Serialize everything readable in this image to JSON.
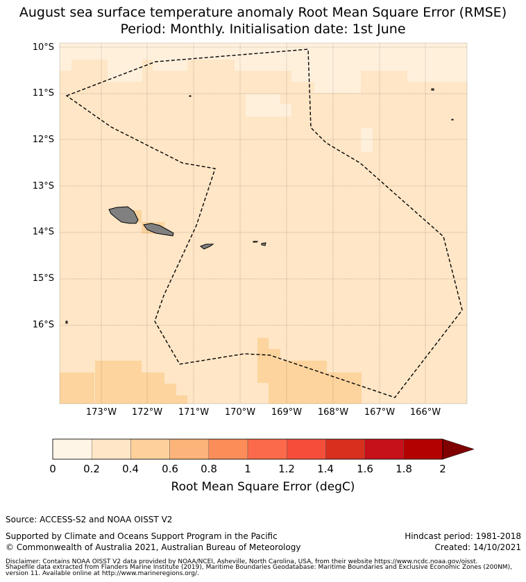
{
  "title_line1": "August sea surface temperature anomaly Root Mean Square Error (RMSE)",
  "title_line2": "Period: Monthly. Initialisation date: 1st June",
  "lat_labels": [
    "10°S",
    "11°S",
    "12°S",
    "13°S",
    "14°S",
    "15°S",
    "16°S"
  ],
  "lon_labels": [
    "173°W",
    "172°W",
    "171°W",
    "170°W",
    "169°W",
    "168°W",
    "167°W",
    "166°W"
  ],
  "colorbar": {
    "ticks": [
      "0",
      "0.2",
      "0.4",
      "0.6",
      "0.8",
      "1",
      "1.2",
      "1.4",
      "1.6",
      "1.8",
      "2"
    ],
    "colors": [
      "#fff5e6",
      "#fee6c6",
      "#fdd09c",
      "#fdb47a",
      "#fc8d59",
      "#fb6a4a",
      "#f44e3a",
      "#d7301f",
      "#c7111a",
      "#b30000"
    ],
    "extend_color": "#7f0000",
    "label": "Root Mean Square Error (degC)"
  },
  "map": {
    "background_color": "#fee6c6",
    "low_color": "#fff0dc",
    "high_color": "#fdd49e",
    "land_color": "#808080",
    "boundary_style": "dashed"
  },
  "footer": {
    "source": "Source: ACCESS-S2 and NOAA OISST V2",
    "supported": "Supported by Climate and Oceans Support Program in the Pacific",
    "copyright": "© Commonwealth of Australia 2021, Australian Bureau of Meteorology",
    "hindcast": "Hindcast period: 1981-2018",
    "created": "Created: 14/10/2021",
    "disclaimer1": "Disclaimer: Contains NOAA OISST V2 data provided by NOAA/NCEI, Asheville, North Carolina, USA, from their website https://www.ncdc.noaa.gov/oisst.",
    "disclaimer2": "Shapefile data extracted from Flanders Marine Institute (2019), Maritime Boundaries Geodatabase: Maritime Boundaries and Exclusive Economic Zones (200NM),",
    "disclaimer3": "version 11. Available online at http://www.marineregions.org/."
  }
}
